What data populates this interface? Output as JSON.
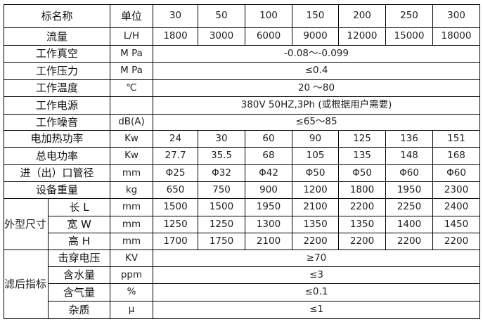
{
  "header": {
    "name": "标名称",
    "unit": "单位",
    "models": [
      "30",
      "50",
      "100",
      "150",
      "200",
      "250",
      "300"
    ]
  },
  "rows": {
    "flow": {
      "label": "流量",
      "unit": "L/H",
      "values": [
        "1800",
        "3000",
        "6000",
        "9000",
        "12000",
        "15000",
        "18000"
      ]
    },
    "vacuum": {
      "label": "工作真空",
      "unit": "M Pa",
      "value": "-0.08～-0.099"
    },
    "pressure": {
      "label": "工作压力",
      "unit": "M Pa",
      "value": "≤0.4"
    },
    "temperature": {
      "label": "工作温度",
      "unit": "℃",
      "value": "20 ～80"
    },
    "power_supply": {
      "label": "工作电源",
      "unit": "",
      "value": "380V 50HZ,3Ph (或根据用户需要)"
    },
    "noise": {
      "label": "工作噪音",
      "unit": "dB(A)",
      "value": "≤65～85"
    },
    "heating_power": {
      "label": "电加热功率",
      "unit": "Kw",
      "values": [
        "24",
        "30",
        "60",
        "90",
        "125",
        "136",
        "151"
      ]
    },
    "total_power": {
      "label": "总电功率",
      "unit": "Kw",
      "values": [
        "27.7",
        "35.5",
        "68",
        "105",
        "135",
        "148",
        "168"
      ]
    },
    "pipe_diameter": {
      "label": "进（出）口管径",
      "unit": "mm",
      "values": [
        "Φ25",
        "Φ32",
        "Φ42",
        "Φ50",
        "Φ50",
        "Φ60",
        "Φ60"
      ]
    },
    "weight": {
      "label": "设备重量",
      "unit": "kg",
      "values": [
        "650",
        "750",
        "900",
        "1200",
        "1800",
        "1950",
        "2300"
      ]
    }
  },
  "dimensions": {
    "label": "外型尺寸",
    "length": {
      "label": "长 L",
      "unit": "mm",
      "values": [
        "1500",
        "1500",
        "1950",
        "2100",
        "2200",
        "2250",
        "2400"
      ]
    },
    "width": {
      "label": "宽 W",
      "unit": "mm",
      "values": [
        "1250",
        "1250",
        "1300",
        "1350",
        "1350",
        "1400",
        "1450"
      ]
    },
    "height": {
      "label": "高 H",
      "unit": "mm",
      "values": [
        "1700",
        "1750",
        "2100",
        "2200",
        "2200",
        "2200",
        "2200"
      ]
    }
  },
  "filtered": {
    "label": "滤后指标",
    "breakdown_voltage": {
      "label": "击穿电压",
      "unit": "KV",
      "value": "≥70"
    },
    "water_content": {
      "label": "含水量",
      "unit": "ppm",
      "value": "≤3"
    },
    "gas_content": {
      "label": "含气量",
      "unit": "%",
      "value": "≤0.1"
    },
    "impurity": {
      "label": "杂质",
      "unit": "μ",
      "value": "≤1"
    }
  }
}
